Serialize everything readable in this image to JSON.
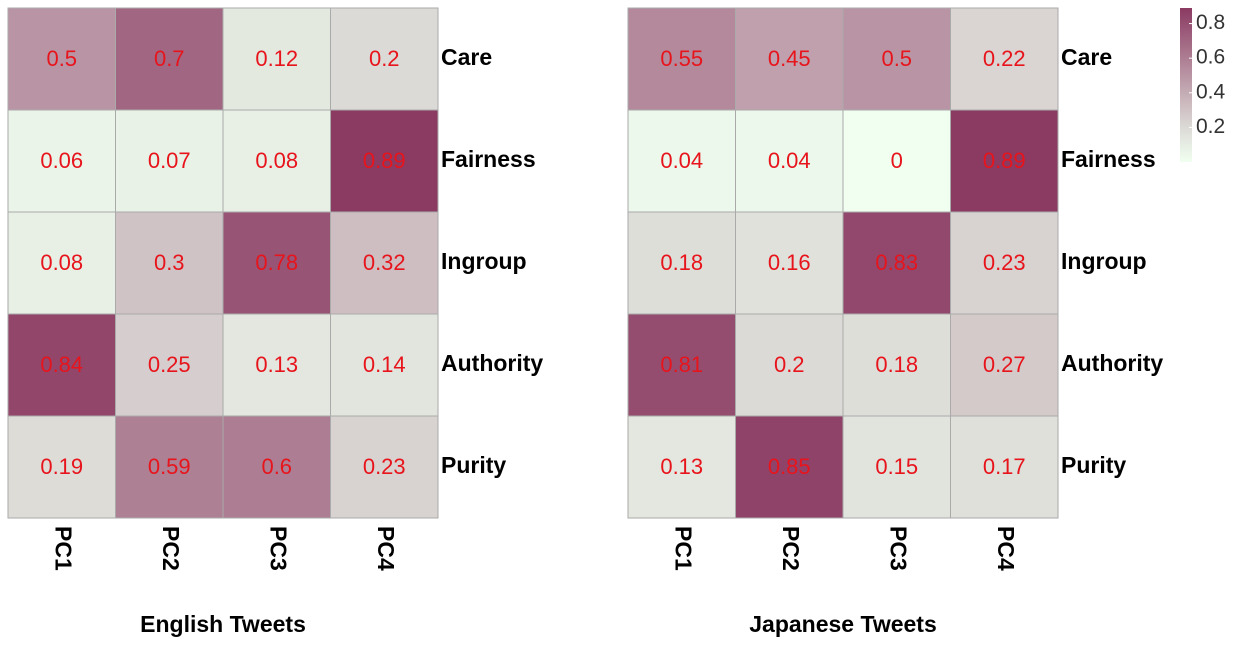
{
  "chart_data": [
    {
      "type": "heatmap",
      "title": "English Tweets",
      "rows": [
        "Care",
        "Fairness",
        "Ingroup",
        "Authority",
        "Purity"
      ],
      "columns": [
        "PC1",
        "PC2",
        "PC3",
        "PC4"
      ],
      "values": [
        [
          0.5,
          0.7,
          0.12,
          0.2
        ],
        [
          0.06,
          0.07,
          0.08,
          0.89
        ],
        [
          0.08,
          0.3,
          0.78,
          0.32
        ],
        [
          0.84,
          0.25,
          0.13,
          0.14
        ],
        [
          0.19,
          0.59,
          0.6,
          0.23
        ]
      ],
      "colorscale": [
        [
          0,
          "#f0fff0"
        ],
        [
          0.2,
          "#dcdad6"
        ],
        [
          0.89,
          "#8b3a62"
        ]
      ],
      "label_color": "#e8141c"
    },
    {
      "type": "heatmap",
      "title": "Japanese Tweets",
      "rows": [
        "Care",
        "Fairness",
        "Ingroup",
        "Authority",
        "Purity"
      ],
      "columns": [
        "PC1",
        "PC2",
        "PC3",
        "PC4"
      ],
      "values": [
        [
          0.55,
          0.45,
          0.5,
          0.22
        ],
        [
          0.04,
          0.04,
          0,
          0.89
        ],
        [
          0.18,
          0.16,
          0.83,
          0.23
        ],
        [
          0.81,
          0.2,
          0.18,
          0.27
        ],
        [
          0.13,
          0.85,
          0.15,
          0.17
        ]
      ],
      "colorscale": [
        [
          0,
          "#f0fff0"
        ],
        [
          0.2,
          "#dcdad6"
        ],
        [
          0.89,
          "#8b3a62"
        ]
      ],
      "label_color": "#e8141c",
      "colorbar": {
        "lim": [
          0,
          0.89
        ],
        "ticks": [
          0.2,
          0.4,
          0.6,
          0.8
        ]
      }
    }
  ]
}
